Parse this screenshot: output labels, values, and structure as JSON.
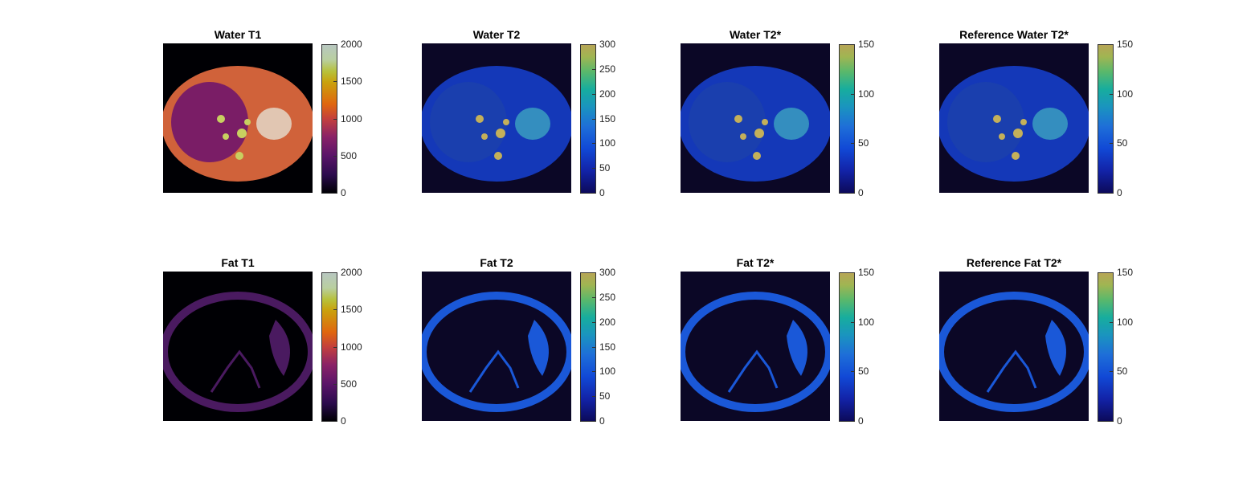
{
  "figure": {
    "panels": [
      {
        "id": "water-t1",
        "title": "Water T1",
        "colormap": "inferno",
        "ticks": [
          "2000",
          "1500",
          "1000",
          "500",
          "0"
        ],
        "tissue": "water",
        "vmax": 2000
      },
      {
        "id": "water-t2",
        "title": "Water T2",
        "colormap": "parula",
        "ticks": [
          "300",
          "250",
          "200",
          "150",
          "100",
          "50",
          "0"
        ],
        "tissue": "water",
        "vmax": 300
      },
      {
        "id": "water-t2star",
        "title": "Water T2*",
        "colormap": "parula",
        "ticks": [
          "150",
          "100",
          "50",
          "0"
        ],
        "tissue": "water",
        "vmax": 150
      },
      {
        "id": "ref-water-t2star",
        "title": "Reference Water T2*",
        "colormap": "parula",
        "ticks": [
          "150",
          "100",
          "50",
          "0"
        ],
        "tissue": "water",
        "vmax": 150
      },
      {
        "id": "fat-t1",
        "title": "Fat T1",
        "colormap": "inferno",
        "ticks": [
          "2000",
          "1500",
          "1000",
          "500",
          "0"
        ],
        "tissue": "fat",
        "vmax": 2000
      },
      {
        "id": "fat-t2",
        "title": "Fat T2",
        "colormap": "parula",
        "ticks": [
          "300",
          "250",
          "200",
          "150",
          "100",
          "50",
          "0"
        ],
        "tissue": "fat",
        "vmax": 300
      },
      {
        "id": "fat-t2star",
        "title": "Fat T2*",
        "colormap": "parula",
        "ticks": [
          "150",
          "100",
          "50",
          "0"
        ],
        "tissue": "fat",
        "vmax": 150
      },
      {
        "id": "ref-fat-t2star",
        "title": "Reference Fat T2*",
        "colormap": "parula",
        "ticks": [
          "150",
          "100",
          "50",
          "0"
        ],
        "tissue": "fat",
        "vmax": 150
      }
    ]
  }
}
